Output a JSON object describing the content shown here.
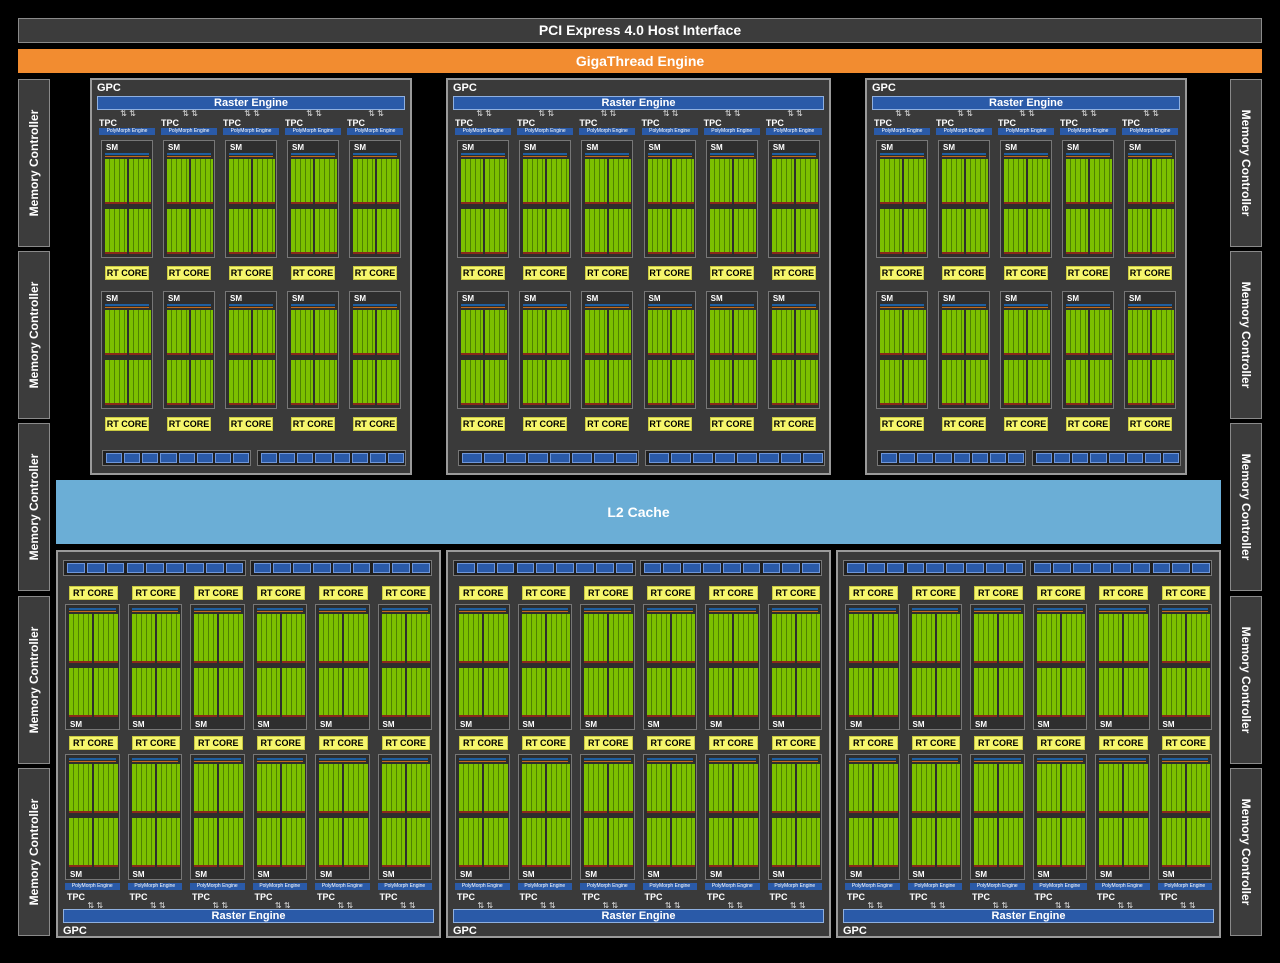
{
  "header": {
    "title": "PCI Express 4.0 Host Interface"
  },
  "giga": {
    "label": "GigaThread Engine"
  },
  "l2": {
    "label": "L2 Cache"
  },
  "memory_controller": {
    "label": "Memory Controller",
    "count_per_side": 5
  },
  "labels": {
    "gpc": "GPC",
    "raster": "Raster Engine",
    "tpc": "TPC",
    "polymorph": "PolyMorph Engine",
    "sm": "SM",
    "rt_core": "RT CORE"
  },
  "colors": {
    "gigathread": "#f28c30",
    "l2_cache": "#6baed6",
    "raster_engine": "#2a5aa8",
    "cuda_core": "#7cc000",
    "rt_core": "#f6f66c"
  }
}
